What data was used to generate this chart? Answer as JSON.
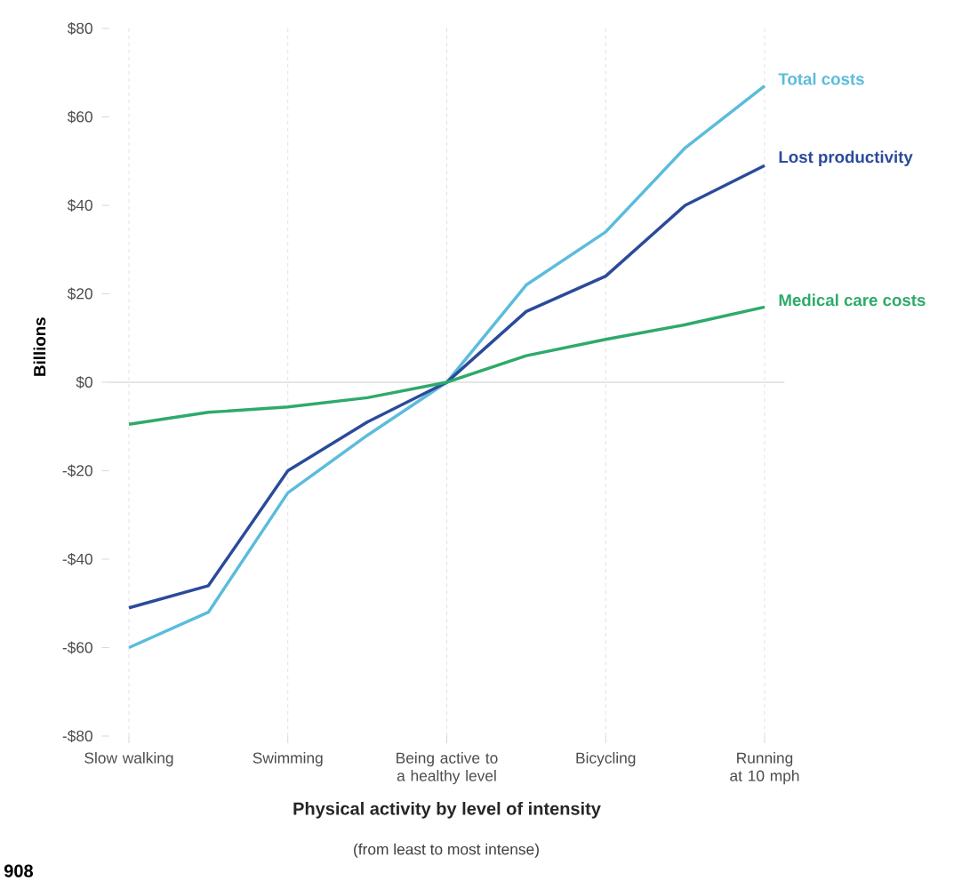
{
  "chart_data": {
    "type": "line",
    "xlabel": "Physical activity by level of intensity",
    "ylabel": "Billions",
    "annotations": [
      "(from least to most intense)",
      "908"
    ],
    "categories": [
      "Slow walking",
      null,
      "Swimming",
      null,
      "Being active to a healthy level",
      null,
      "Bicycling",
      null,
      "Running at 10 mph"
    ],
    "series": [
      {
        "name": "Total costs",
        "color": "#5bbcdc",
        "values": [
          -60,
          -52,
          -25,
          -12,
          0,
          22,
          34,
          53,
          67
        ]
      },
      {
        "name": "Lost productivity",
        "color": "#2b4a9a",
        "values": [
          -51,
          -46,
          -20,
          -9,
          0,
          16,
          24,
          40,
          49
        ]
      },
      {
        "name": "Medical care costs",
        "color": "#2eaa6a",
        "values": [
          -9.5,
          -6.8,
          -5.6,
          -3.5,
          0,
          6,
          9.7,
          13,
          17
        ]
      }
    ],
    "ylim": [
      -80,
      80
    ],
    "yticks": [
      {
        "value": -80,
        "label": "-$80"
      },
      {
        "value": -60,
        "label": "-$60"
      },
      {
        "value": -40,
        "label": "-$40"
      },
      {
        "value": -20,
        "label": "-$20"
      },
      {
        "value": 0,
        "label": "$0"
      },
      {
        "value": 20,
        "label": "$20"
      },
      {
        "value": 40,
        "label": "$40"
      },
      {
        "value": 60,
        "label": "$60"
      },
      {
        "value": 80,
        "label": "$80"
      }
    ],
    "ref_lines": [
      {
        "axis": "y",
        "value": 0,
        "color": "#dddddd"
      }
    ],
    "grid": "x",
    "marker": "none",
    "line_style": "solid"
  }
}
